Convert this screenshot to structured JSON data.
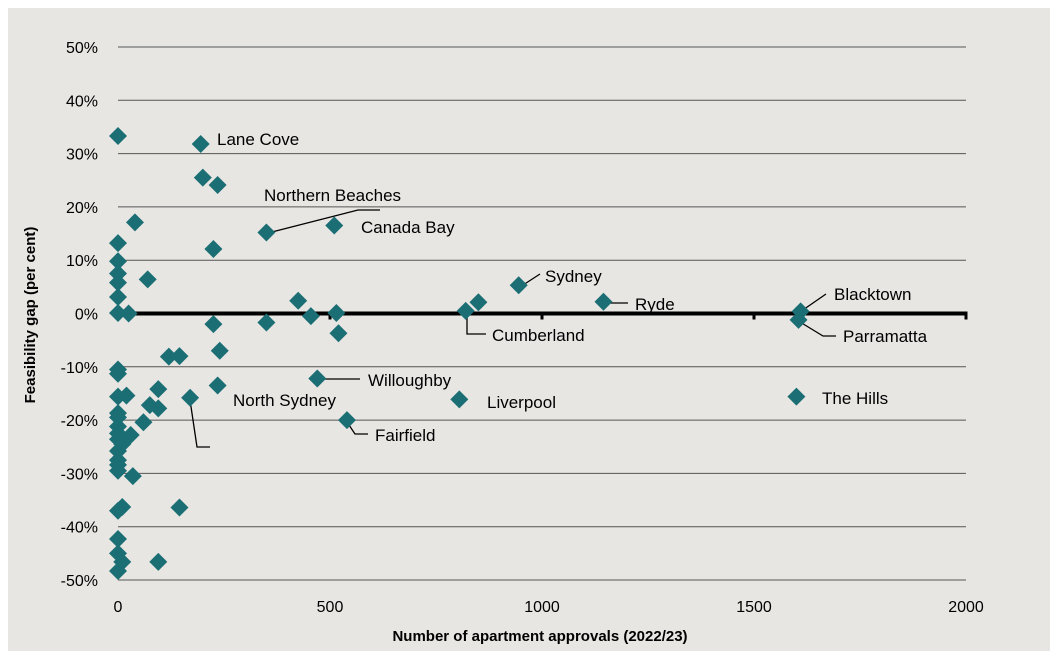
{
  "colors": {
    "background": "#e8e6e3",
    "marker": "#1b6f74",
    "grid": "#555555",
    "zero_line": "#000000"
  },
  "chart_data": {
    "type": "scatter",
    "xlabel": "Number of apartment approvals (2022/23)",
    "ylabel": "Feasibility gap (per cent)",
    "xlim": [
      0,
      2000
    ],
    "ylim": [
      -50,
      50
    ],
    "x_ticks": [
      0,
      500,
      1000,
      1500,
      2000
    ],
    "x_tick_labels": [
      "0",
      "500",
      "1000",
      "1500",
      "2000"
    ],
    "y_ticks": [
      -50,
      -40,
      -30,
      -20,
      -10,
      0,
      10,
      20,
      30,
      40,
      50
    ],
    "y_tick_labels": [
      "-50%",
      "-40%",
      "-30%",
      "-20%",
      "-10%",
      "0%",
      "10%",
      "20%",
      "30%",
      "40%",
      "50%"
    ],
    "grid": "horizontal",
    "zero_line": true,
    "marker": "diamond",
    "points": [
      {
        "x": 0,
        "y": 33.3
      },
      {
        "x": 195,
        "y": 31.8
      },
      {
        "x": 200,
        "y": 25.5
      },
      {
        "x": 235,
        "y": 24.1
      },
      {
        "x": 40,
        "y": 17.1
      },
      {
        "x": 350,
        "y": 15.2
      },
      {
        "x": 510,
        "y": 16.5
      },
      {
        "x": 0,
        "y": 13.2
      },
      {
        "x": 225,
        "y": 12.1
      },
      {
        "x": 0,
        "y": 9.8
      },
      {
        "x": 0,
        "y": 7.5
      },
      {
        "x": 0,
        "y": 5.8
      },
      {
        "x": 70,
        "y": 6.4
      },
      {
        "x": 0,
        "y": 3.1
      },
      {
        "x": 945,
        "y": 5.3
      },
      {
        "x": 425,
        "y": 2.4
      },
      {
        "x": 850,
        "y": 2.1
      },
      {
        "x": 1145,
        "y": 2.2
      },
      {
        "x": 0,
        "y": 0.1
      },
      {
        "x": 25,
        "y": 0
      },
      {
        "x": 515,
        "y": 0.1
      },
      {
        "x": 455,
        "y": -0.5
      },
      {
        "x": 820,
        "y": 0.5
      },
      {
        "x": 1610,
        "y": 0.4
      },
      {
        "x": 225,
        "y": -2.0
      },
      {
        "x": 350,
        "y": -1.7
      },
      {
        "x": 1605,
        "y": -1.2
      },
      {
        "x": 520,
        "y": -3.7
      },
      {
        "x": 240,
        "y": -7.0
      },
      {
        "x": 120,
        "y": -8.1
      },
      {
        "x": 145,
        "y": -8.0
      },
      {
        "x": 0,
        "y": -10.5
      },
      {
        "x": 0,
        "y": -11.3
      },
      {
        "x": 470,
        "y": -12.2
      },
      {
        "x": 235,
        "y": -13.5
      },
      {
        "x": 95,
        "y": -14.2
      },
      {
        "x": 0,
        "y": -15.6
      },
      {
        "x": 20,
        "y": -15.4
      },
      {
        "x": 170,
        "y": -15.8
      },
      {
        "x": 805,
        "y": -16.1
      },
      {
        "x": 1600,
        "y": -15.6
      },
      {
        "x": 75,
        "y": -17.2
      },
      {
        "x": 95,
        "y": -17.8
      },
      {
        "x": 0,
        "y": -18.7
      },
      {
        "x": 0,
        "y": -19.5
      },
      {
        "x": 540,
        "y": -20.0
      },
      {
        "x": 60,
        "y": -20.4
      },
      {
        "x": 0,
        "y": -21.2
      },
      {
        "x": 0,
        "y": -22.5
      },
      {
        "x": 30,
        "y": -22.8
      },
      {
        "x": 0,
        "y": -23.6
      },
      {
        "x": 10,
        "y": -24.5
      },
      {
        "x": 0,
        "y": -25.8
      },
      {
        "x": 0,
        "y": -27.5
      },
      {
        "x": 0,
        "y": -28.4
      },
      {
        "x": 0,
        "y": -29.5
      },
      {
        "x": 35,
        "y": -30.5
      },
      {
        "x": 10,
        "y": -36.3
      },
      {
        "x": 145,
        "y": -36.4
      },
      {
        "x": 0,
        "y": -37.0
      },
      {
        "x": 0,
        "y": -42.3
      },
      {
        "x": 0,
        "y": -45.0
      },
      {
        "x": 10,
        "y": -46.6
      },
      {
        "x": 95,
        "y": -46.6
      },
      {
        "x": 0,
        "y": -48.3
      }
    ],
    "annotations": [
      {
        "text": "Lane Cove"
      },
      {
        "text": "Northern Beaches"
      },
      {
        "text": "Canada Bay"
      },
      {
        "text": "Sydney"
      },
      {
        "text": "Ryde"
      },
      {
        "text": "Blacktown"
      },
      {
        "text": "Cumberland"
      },
      {
        "text": "Parramatta"
      },
      {
        "text": "Willoughby"
      },
      {
        "text": "North Sydney"
      },
      {
        "text": "Liverpool"
      },
      {
        "text": "The Hills"
      },
      {
        "text": "Fairfield"
      }
    ]
  }
}
